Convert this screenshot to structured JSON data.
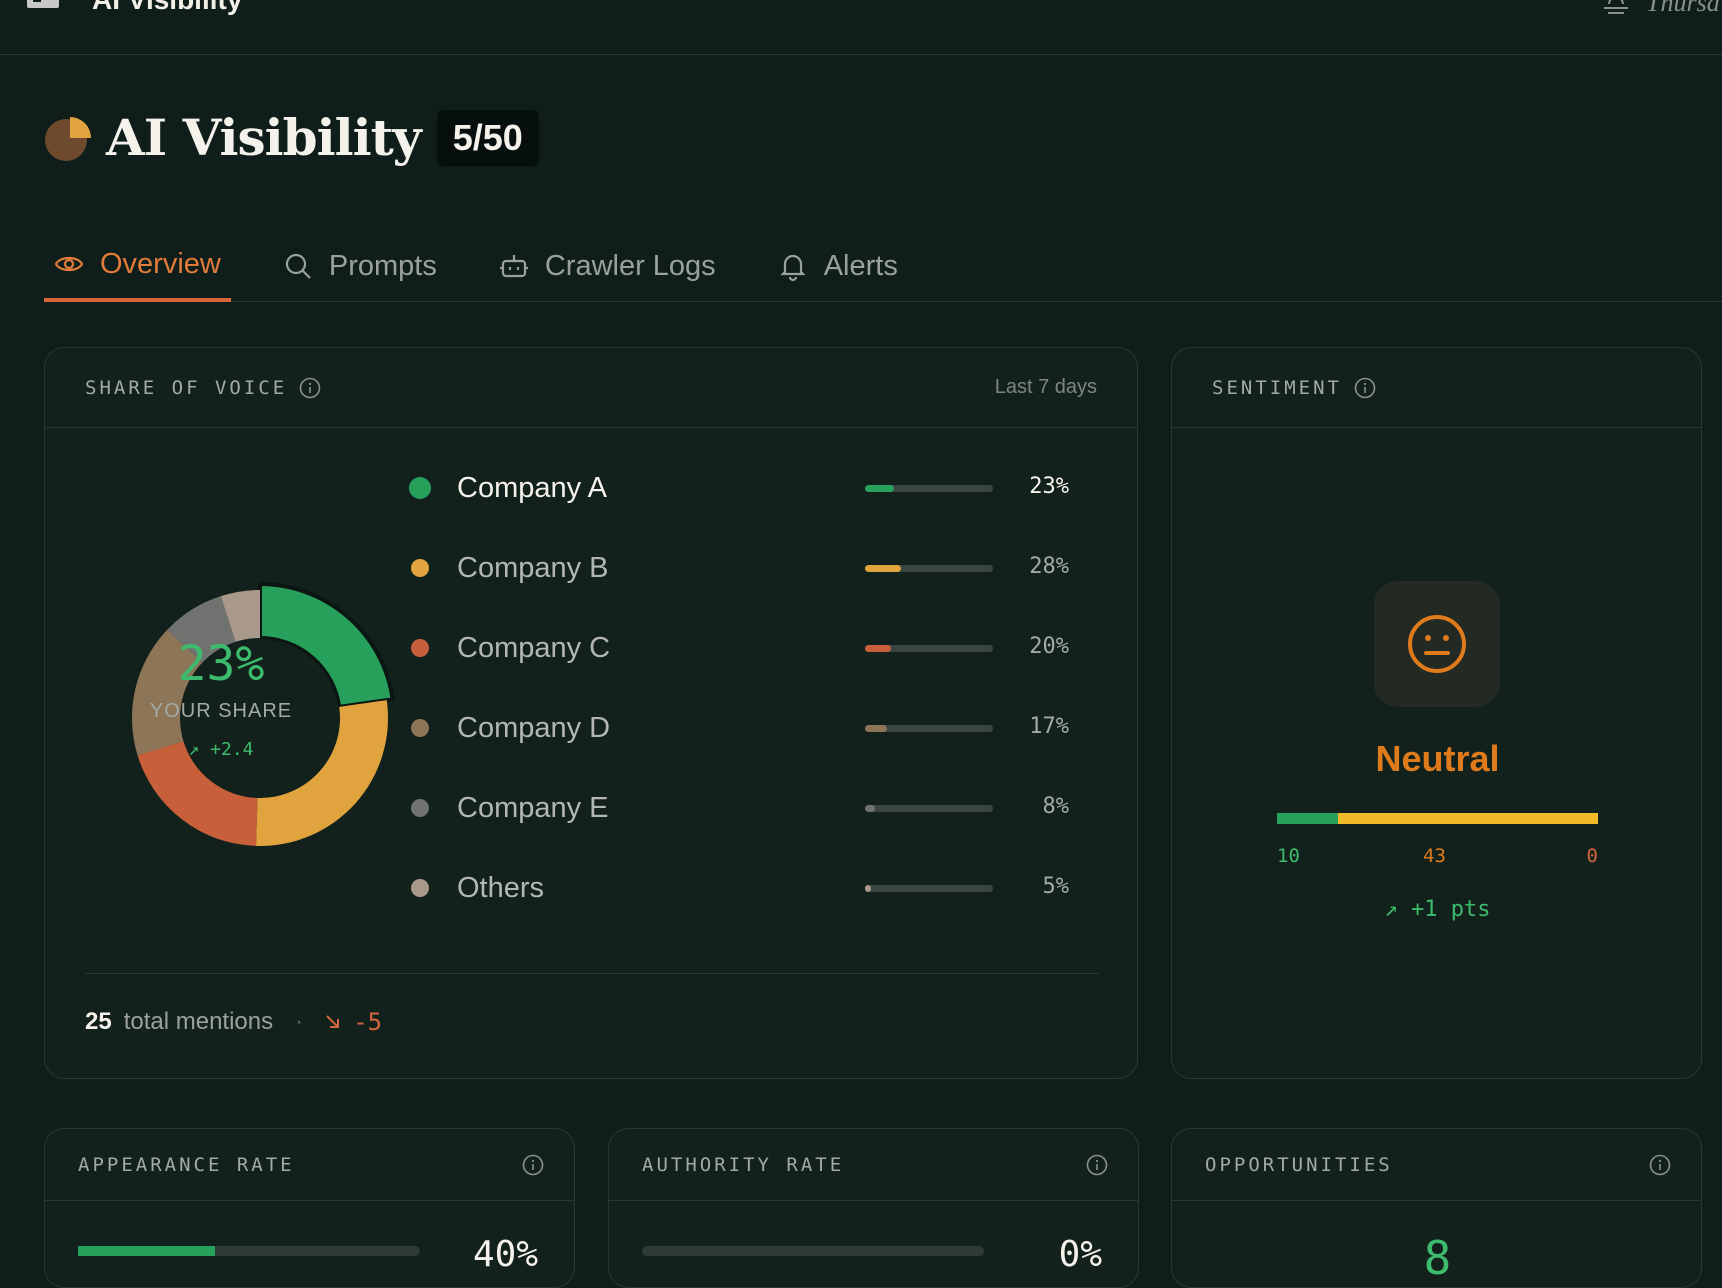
{
  "topbar": {
    "title": "AI Visibility",
    "date": "Thursd"
  },
  "header": {
    "title": "AI Visibility",
    "badge": "5/50"
  },
  "tabs": [
    {
      "label": "Overview",
      "icon": "eye-icon",
      "active": true
    },
    {
      "label": "Prompts",
      "icon": "search-icon",
      "active": false
    },
    {
      "label": "Crawler Logs",
      "icon": "robot-icon",
      "active": false
    },
    {
      "label": "Alerts",
      "icon": "bell-icon",
      "active": false
    }
  ],
  "share_of_voice": {
    "title": "SHARE OF VOICE",
    "period": "Last 7 days",
    "center_value": "23%",
    "center_label": "YOUR SHARE",
    "center_delta": "↗ +2.4",
    "items": [
      {
        "name": "Company A",
        "pct": "23%",
        "value": 23,
        "color": "#27a05b"
      },
      {
        "name": "Company B",
        "pct": "28%",
        "value": 28,
        "color": "#e0a33e"
      },
      {
        "name": "Company C",
        "pct": "20%",
        "value": 20,
        "color": "#c85f3b"
      },
      {
        "name": "Company D",
        "pct": "17%",
        "value": 17,
        "color": "#8d7558"
      },
      {
        "name": "Company E",
        "pct": "8%",
        "value": 8,
        "color": "#707270"
      },
      {
        "name": "Others",
        "pct": "5%",
        "value": 5,
        "color": "#a8998a"
      }
    ],
    "total": "25",
    "total_label": "total mentions",
    "separator": "·",
    "delta": "-5"
  },
  "sentiment": {
    "title": "SENTIMENT",
    "label": "Neutral",
    "positive": "10",
    "neutral": "43",
    "negative": "0",
    "positive_value": 10,
    "neutral_value": 43,
    "negative_value": 0,
    "delta": "↗ +1 pts",
    "colors": {
      "positive": "#27a05b",
      "neutral": "#f0bb26",
      "negative": "#d2673d",
      "face": "#e07b1c"
    }
  },
  "metrics": {
    "appearance": {
      "title": "APPEARANCE RATE",
      "value": "40%",
      "fraction": 0.4
    },
    "authority": {
      "title": "AUTHORITY RATE",
      "value": "0%",
      "fraction": 0
    },
    "opportunities": {
      "title": "OPPORTUNITIES",
      "value": "8"
    }
  }
}
